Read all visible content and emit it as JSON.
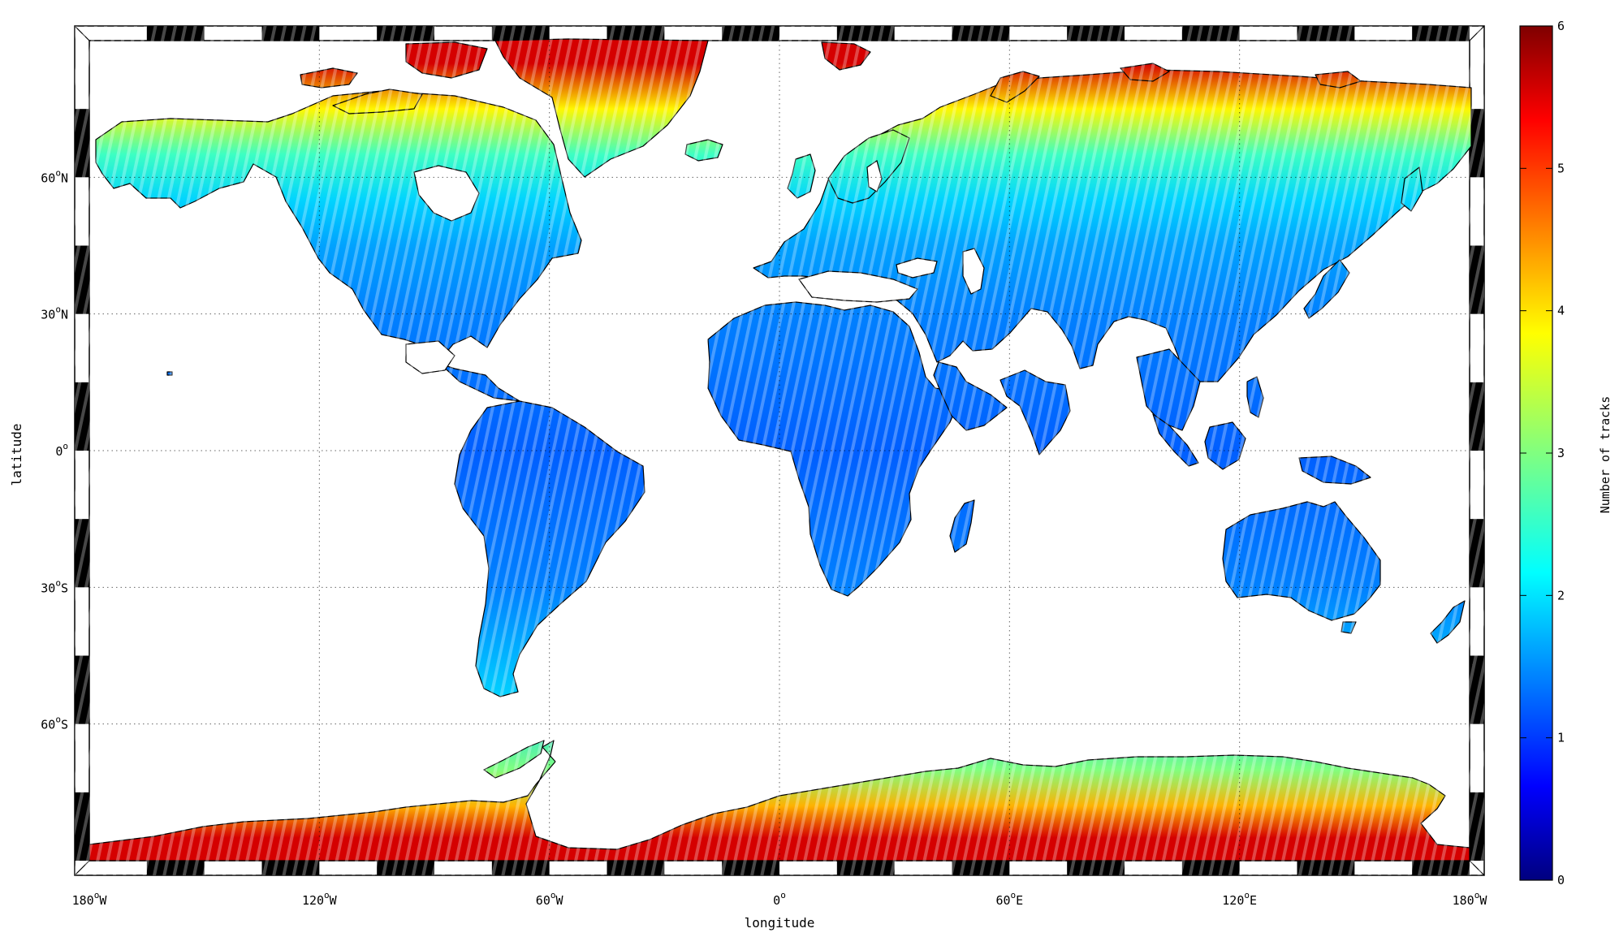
{
  "map": {
    "projection": "equirectangular",
    "x_ticks": [
      {
        "lon": -180,
        "deg": "180",
        "hemi": "W"
      },
      {
        "lon": -120,
        "deg": "120",
        "hemi": "W"
      },
      {
        "lon": -60,
        "deg": "60",
        "hemi": "W"
      },
      {
        "lon": 0,
        "deg": "0",
        "hemi": ""
      },
      {
        "lon": 60,
        "deg": "60",
        "hemi": "E"
      },
      {
        "lon": 120,
        "deg": "120",
        "hemi": "E"
      },
      {
        "lon": 180,
        "deg": "180",
        "hemi": "W"
      }
    ],
    "y_ticks": [
      {
        "lat": 60,
        "deg": "60",
        "hemi": "N"
      },
      {
        "lat": 30,
        "deg": "30",
        "hemi": "N"
      },
      {
        "lat": 0,
        "deg": "0",
        "hemi": ""
      },
      {
        "lat": -30,
        "deg": "30",
        "hemi": "S"
      },
      {
        "lat": -60,
        "deg": "60",
        "hemi": "S"
      }
    ],
    "xlabel": "longitude",
    "ylabel": "latitude",
    "lon_range": [
      -180,
      180
    ],
    "lat_range": [
      -90,
      90
    ],
    "grid": "dotted",
    "land_fill_by_latitude": [
      {
        "lat": 85,
        "value": 5.5
      },
      {
        "lat": 75,
        "value": 3.8
      },
      {
        "lat": 65,
        "value": 2.6
      },
      {
        "lat": 55,
        "value": 2.0
      },
      {
        "lat": 45,
        "value": 1.7
      },
      {
        "lat": 30,
        "value": 1.5
      },
      {
        "lat": 0,
        "value": 1.3
      },
      {
        "lat": -30,
        "value": 1.5
      },
      {
        "lat": -55,
        "value": 2.0
      },
      {
        "lat": -70,
        "value": 3.0
      },
      {
        "lat": -78,
        "value": 4.2
      },
      {
        "lat": -85,
        "value": 5.5
      }
    ]
  },
  "colorbar": {
    "label": "Number of tracks",
    "range": [
      0,
      6
    ],
    "ticks": [
      "0",
      "1",
      "2",
      "3",
      "4",
      "5",
      "6"
    ],
    "colormap": "jet"
  }
}
